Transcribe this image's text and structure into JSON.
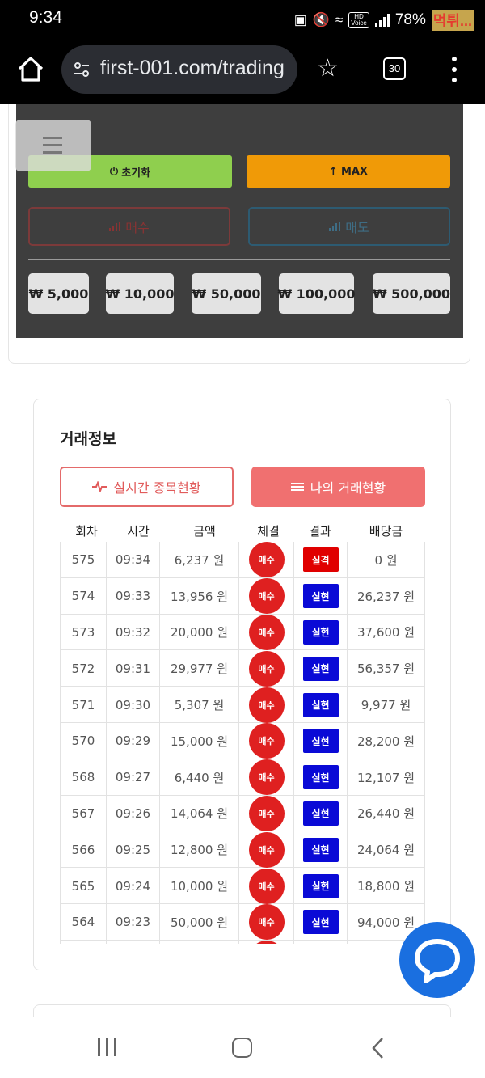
{
  "status_bar": {
    "time": "9:34",
    "battery": "78%",
    "hd_top": "HD",
    "hd_bottom": "Voice",
    "watermark": "먹튀..."
  },
  "browser": {
    "url": "first-001.com/trading",
    "tab_count": "30"
  },
  "controls": {
    "reset_label": "초기화",
    "max_label": "MAX",
    "buy_label": "매수",
    "sell_label": "매도",
    "amounts": [
      "₩ 5,000",
      "₩ 10,000",
      "₩ 50,000",
      "₩ 100,000",
      "₩ 500,000"
    ]
  },
  "trade_info": {
    "title": "거래정보",
    "tab_realtime": "실시간 종목현황",
    "tab_mine": "나의 거래현황",
    "columns": [
      "회차",
      "시간",
      "금액",
      "체결",
      "결과",
      "배당금"
    ],
    "rows": [
      {
        "round": "575",
        "time": "09:34",
        "amount": "6,237 원",
        "side": "매수",
        "result": "실격",
        "result_color": "#e00000",
        "payout": "0 원"
      },
      {
        "round": "574",
        "time": "09:33",
        "amount": "13,956 원",
        "side": "매수",
        "result": "실현",
        "result_color": "#0a0ad6",
        "payout": "26,237 원"
      },
      {
        "round": "573",
        "time": "09:32",
        "amount": "20,000 원",
        "side": "매수",
        "result": "실현",
        "result_color": "#0a0ad6",
        "payout": "37,600 원"
      },
      {
        "round": "572",
        "time": "09:31",
        "amount": "29,977 원",
        "side": "매수",
        "result": "실현",
        "result_color": "#0a0ad6",
        "payout": "56,357 원"
      },
      {
        "round": "571",
        "time": "09:30",
        "amount": "5,307 원",
        "side": "매수",
        "result": "실현",
        "result_color": "#0a0ad6",
        "payout": "9,977 원"
      },
      {
        "round": "570",
        "time": "09:29",
        "amount": "15,000 원",
        "side": "매수",
        "result": "실현",
        "result_color": "#0a0ad6",
        "payout": "28,200 원"
      },
      {
        "round": "568",
        "time": "09:27",
        "amount": "6,440 원",
        "side": "매수",
        "result": "실현",
        "result_color": "#0a0ad6",
        "payout": "12,107 원"
      },
      {
        "round": "567",
        "time": "09:26",
        "amount": "14,064 원",
        "side": "매수",
        "result": "실현",
        "result_color": "#0a0ad6",
        "payout": "26,440 원"
      },
      {
        "round": "566",
        "time": "09:25",
        "amount": "12,800 원",
        "side": "매수",
        "result": "실현",
        "result_color": "#0a0ad6",
        "payout": "24,064 원"
      },
      {
        "round": "565",
        "time": "09:24",
        "amount": "10,000 원",
        "side": "매수",
        "result": "실현",
        "result_color": "#0a0ad6",
        "payout": "18,800 원"
      },
      {
        "round": "564",
        "time": "09:23",
        "amount": "50,000 원",
        "side": "매수",
        "result": "실현",
        "result_color": "#0a0ad6",
        "payout": "94,000 원"
      },
      {
        "round": "",
        "time": "",
        "amount": "",
        "side": "",
        "result": "",
        "result_color": "#e00000",
        "payout": ""
      }
    ]
  },
  "icons": {
    "home": "home-icon",
    "tune": "tune-icon",
    "star": "star-icon",
    "menu": "more-vert-icon",
    "power": "power-icon",
    "arrow_up": "arrow-up-icon",
    "signal": "signal-bars-icon",
    "pulse": "pulse-icon",
    "list": "list-icon",
    "chat": "chat-bubble-icon"
  },
  "colors": {
    "reset_green": "#8fcf4e",
    "max_orange": "#f09a07",
    "buy_red": "#df2020",
    "loss_red": "#e00000",
    "win_blue": "#0a0ad6",
    "tab_active": "#f07070",
    "chat_blue": "#1a6fe0"
  }
}
